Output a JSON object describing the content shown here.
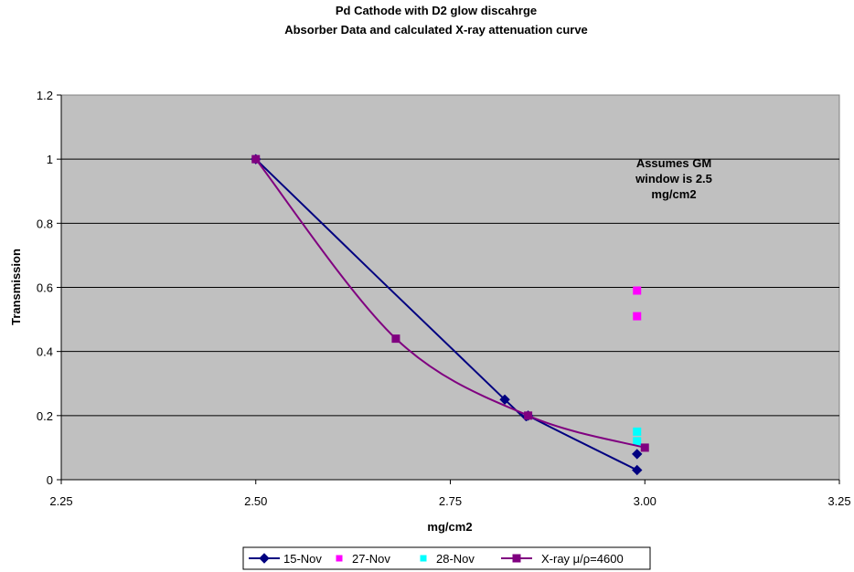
{
  "chart_data": {
    "type": "scatter",
    "title": [
      "Pd Cathode with D2 glow discahrge",
      "Absorber Data and calculated X-ray attenuation curve"
    ],
    "xlabel": "mg/cm2",
    "ylabel": "Transmission",
    "xlim": [
      2.25,
      3.25
    ],
    "ylim": [
      0,
      1.2
    ],
    "x_ticks": [
      "2.25",
      "2.50",
      "2.75",
      "3.00",
      "3.25"
    ],
    "y_ticks": [
      "0",
      "0.2",
      "0.4",
      "0.6",
      "0.8",
      "1",
      "1.2"
    ],
    "grid": "horizontal",
    "background": "#c0c0c0",
    "annotation": [
      "Assumes GM",
      "window is 2.5",
      "mg/cm2"
    ],
    "series": [
      {
        "name": "15-Nov",
        "color": "#000080",
        "marker": "diamond",
        "line": true,
        "smooth": true,
        "x": [
          2.5,
          2.82,
          2.85,
          2.99,
          2.99
        ],
        "y": [
          1.0,
          0.25,
          0.2,
          0.08,
          0.03
        ],
        "line_x": [
          2.5,
          2.82,
          2.85,
          2.99
        ],
        "line_y": [
          1.0,
          0.25,
          0.2,
          0.03
        ]
      },
      {
        "name": "27-Nov",
        "color": "#ff00ff",
        "marker": "square",
        "line": false,
        "x": [
          2.99,
          2.99
        ],
        "y": [
          0.59,
          0.51
        ]
      },
      {
        "name": "28-Nov",
        "color": "#00ffff",
        "marker": "square",
        "line": false,
        "x": [
          2.99,
          2.99
        ],
        "y": [
          0.15,
          0.12
        ]
      },
      {
        "name": "X-ray μ/ρ=4600",
        "color": "#800080",
        "marker": "square",
        "line": true,
        "smooth": true,
        "x": [
          2.5,
          2.68,
          2.85,
          3.0
        ],
        "y": [
          1.0,
          0.44,
          0.2,
          0.1
        ]
      }
    ],
    "legend": "bottom"
  }
}
